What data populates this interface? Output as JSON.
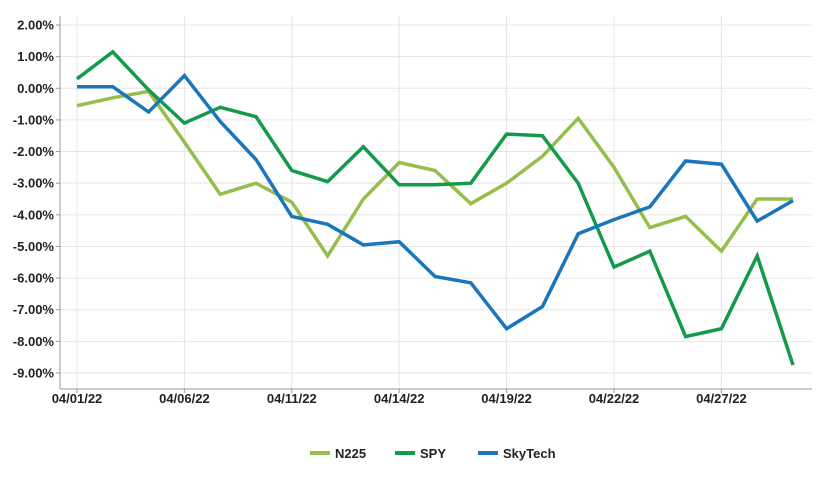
{
  "chart_data": {
    "type": "line",
    "title": "",
    "xlabel": "",
    "ylabel": "",
    "ylim": [
      -9.5,
      2.0
    ],
    "y_ticks": [
      "2.00%",
      "1.00%",
      "0.00%",
      "-1.00%",
      "-2.00%",
      "-3.00%",
      "-4.00%",
      "-5.00%",
      "-6.00%",
      "-7.00%",
      "-8.00%",
      "-9.00%"
    ],
    "y_tick_values": [
      2,
      1,
      0,
      -1,
      -2,
      -3,
      -4,
      -5,
      -6,
      -7,
      -8,
      -9
    ],
    "x_tick_labels": [
      "04/01/22",
      "04/06/22",
      "04/11/22",
      "04/14/22",
      "04/19/22",
      "04/22/22",
      "04/27/22"
    ],
    "x_tick_indices": [
      0,
      3,
      6,
      9,
      12,
      15,
      18
    ],
    "x": [
      "04/01/22",
      "04/04/22",
      "04/05/22",
      "04/06/22",
      "04/07/22",
      "04/08/22",
      "04/11/22",
      "04/12/22",
      "04/13/22",
      "04/14/22",
      "04/15/22",
      "04/18/22",
      "04/19/22",
      "04/20/22",
      "04/21/22",
      "04/22/22",
      "04/25/22",
      "04/26/22",
      "04/27/22",
      "04/28/22",
      "04/29/22"
    ],
    "grid": true,
    "legend_position": "bottom",
    "series": [
      {
        "name": "N225",
        "color": "#95bf4a",
        "values": [
          -0.55,
          -0.3,
          -0.1,
          -1.7,
          -3.35,
          -3.0,
          -3.6,
          -5.3,
          -3.5,
          -2.35,
          -2.6,
          -3.65,
          -3.0,
          -2.15,
          -0.95,
          -2.5,
          -4.4,
          -4.05,
          -5.15,
          -3.5,
          -3.5
        ]
      },
      {
        "name": "SPY",
        "color": "#139a4a",
        "values": [
          0.3,
          1.15,
          -0.05,
          -1.1,
          -0.6,
          -0.9,
          -2.6,
          -2.95,
          -1.85,
          -3.05,
          -3.05,
          -3.0,
          -1.45,
          -1.5,
          -3.0,
          -5.65,
          -5.15,
          -7.85,
          -7.6,
          -5.3,
          -8.75
        ]
      },
      {
        "name": "SkyTech",
        "color": "#1a76bb",
        "values": [
          0.05,
          0.05,
          -0.75,
          0.4,
          -1.05,
          -2.25,
          -4.05,
          -4.3,
          -4.95,
          -4.85,
          -5.95,
          -6.15,
          -7.6,
          -6.9,
          -4.6,
          -4.15,
          -3.75,
          -2.3,
          -2.4,
          -4.2,
          -3.55
        ]
      }
    ]
  }
}
